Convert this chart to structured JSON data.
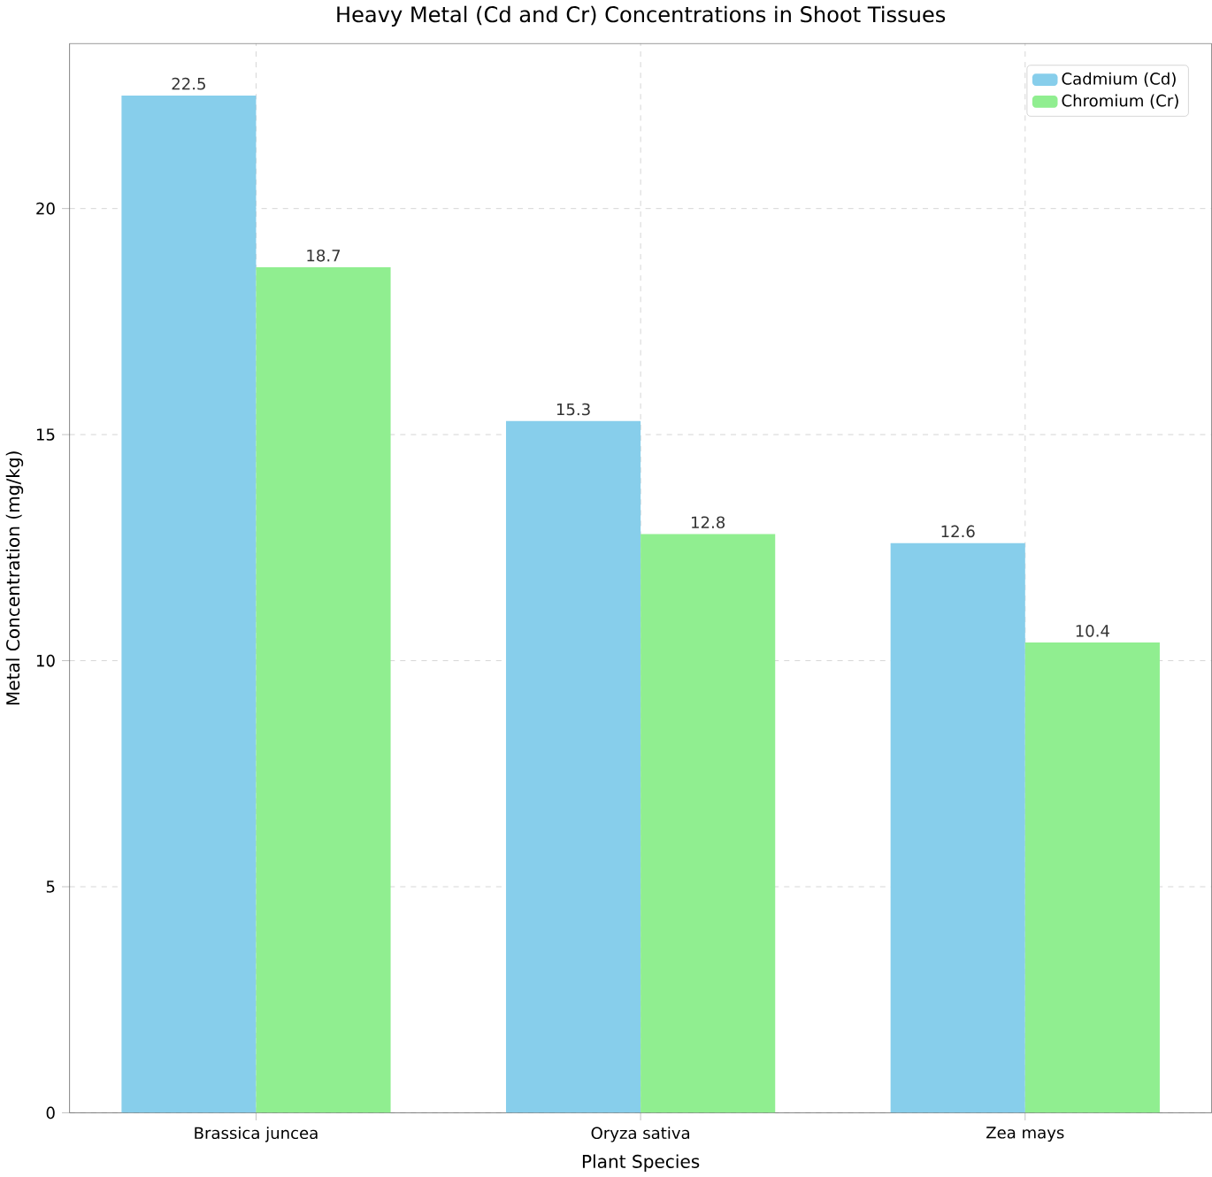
{
  "chart_data": {
    "type": "bar",
    "title": "Heavy Metal (Cd and Cr) Concentrations in Shoot Tissues",
    "xlabel": "Plant Species",
    "ylabel": "Metal Concentration (mg/kg)",
    "categories": [
      "Brassica juncea",
      "Oryza sativa",
      "Zea mays"
    ],
    "series": [
      {
        "name": "Cadmium (Cd)",
        "color": "#87ceeb",
        "values": [
          22.5,
          15.3,
          12.6
        ]
      },
      {
        "name": "Chromium (Cr)",
        "color": "#90ee90",
        "values": [
          18.7,
          12.8,
          10.4
        ]
      }
    ],
    "ylim": [
      0,
      23.65
    ],
    "yticks": [
      0,
      5,
      10,
      15,
      20
    ],
    "grid": true,
    "legend": "top right",
    "data_labels": true
  }
}
